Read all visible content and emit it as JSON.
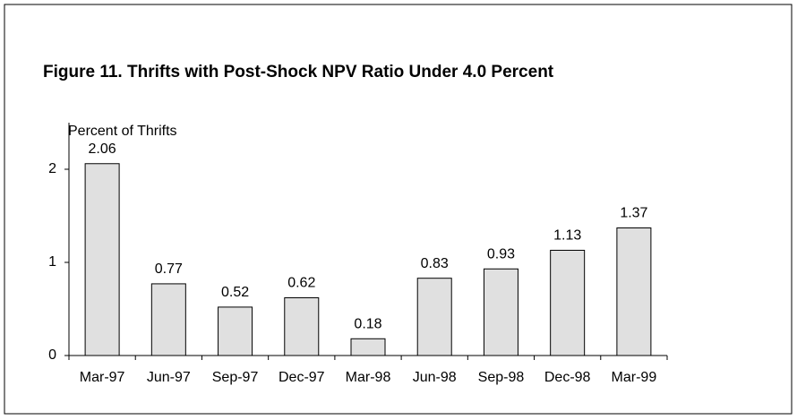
{
  "chart_data": {
    "type": "bar",
    "title": "Figure 11.  Thrifts with Post-Shock NPV Ratio Under 4.0 Percent",
    "y_label": "Percent of Thrifts",
    "categories": [
      "Mar-97",
      "Jun-97",
      "Sep-97",
      "Dec-97",
      "Mar-98",
      "Jun-98",
      "Sep-98",
      "Dec-98",
      "Mar-99"
    ],
    "values": [
      2.06,
      0.77,
      0.52,
      0.62,
      0.18,
      0.83,
      0.93,
      1.13,
      1.37
    ],
    "color": "#e0e0e0",
    "ylim": [
      0,
      2.5
    ],
    "yticks": [
      0,
      1,
      2
    ],
    "grid": false
  }
}
